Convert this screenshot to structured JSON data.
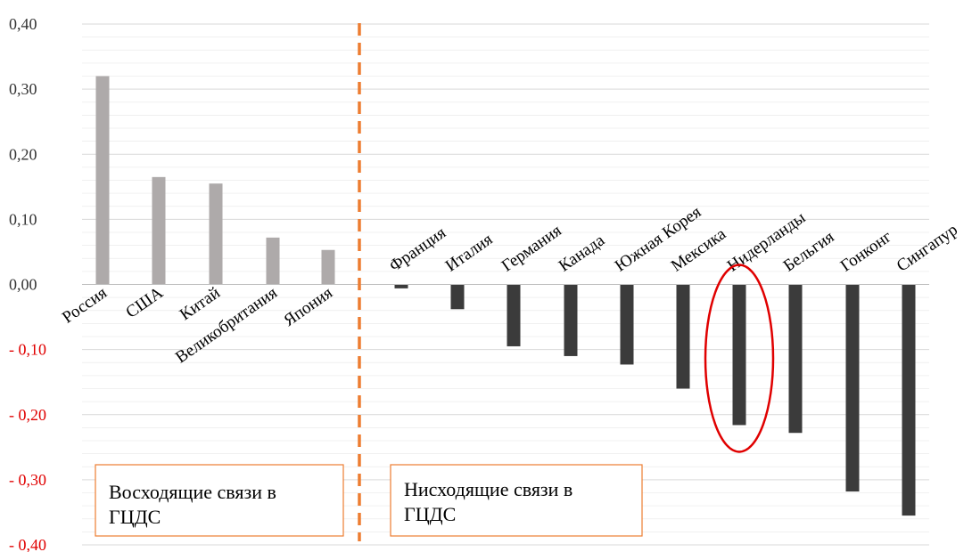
{
  "chart_data": {
    "type": "bar",
    "ylim": [
      -0.4,
      0.4
    ],
    "yticks": [
      {
        "value": 0.4,
        "label": "0,40",
        "color": "#333333"
      },
      {
        "value": 0.3,
        "label": "0,30",
        "color": "#333333"
      },
      {
        "value": 0.2,
        "label": "0,20",
        "color": "#333333"
      },
      {
        "value": 0.1,
        "label": "0,10",
        "color": "#333333"
      },
      {
        "value": 0.0,
        "label": "0,00",
        "color": "#333333"
      },
      {
        "value": -0.1,
        "label": "- 0,10",
        "color": "#e00000"
      },
      {
        "value": -0.2,
        "label": "- 0,20",
        "color": "#e00000"
      },
      {
        "value": -0.3,
        "label": "- 0,30",
        "color": "#e00000"
      },
      {
        "value": -0.4,
        "label": "- 0,40",
        "color": "#e00000"
      }
    ],
    "grid": true,
    "groups": [
      {
        "box_label_line1": "Восходящие связи в",
        "box_label_line2": "ГЦДС",
        "color": "#aeaaaa",
        "categories": [
          "Россия",
          "США",
          "Китай",
          "Великобритания",
          "Япония"
        ],
        "values": [
          0.32,
          0.165,
          0.155,
          0.072,
          0.053
        ]
      },
      {
        "box_label_line1": "Нисходящие связи в",
        "box_label_line2": "ГЦДС",
        "color": "#3b3b3b",
        "categories": [
          "Франция",
          "Италия",
          "Германия",
          "Канада",
          "Южная Корея",
          "Мексика",
          "Нидерланды",
          "Бельгия",
          "Гонконг",
          "Сингапур"
        ],
        "values": [
          -0.006,
          -0.038,
          -0.095,
          -0.11,
          -0.123,
          -0.16,
          -0.216,
          -0.228,
          -0.318,
          -0.355
        ]
      }
    ],
    "highlight": "Нидерланды",
    "divider_color": "#ed7d31",
    "box_border_color": "#ed7d31",
    "highlight_color": "#e00000",
    "grid_color": "#d9d9d9"
  }
}
